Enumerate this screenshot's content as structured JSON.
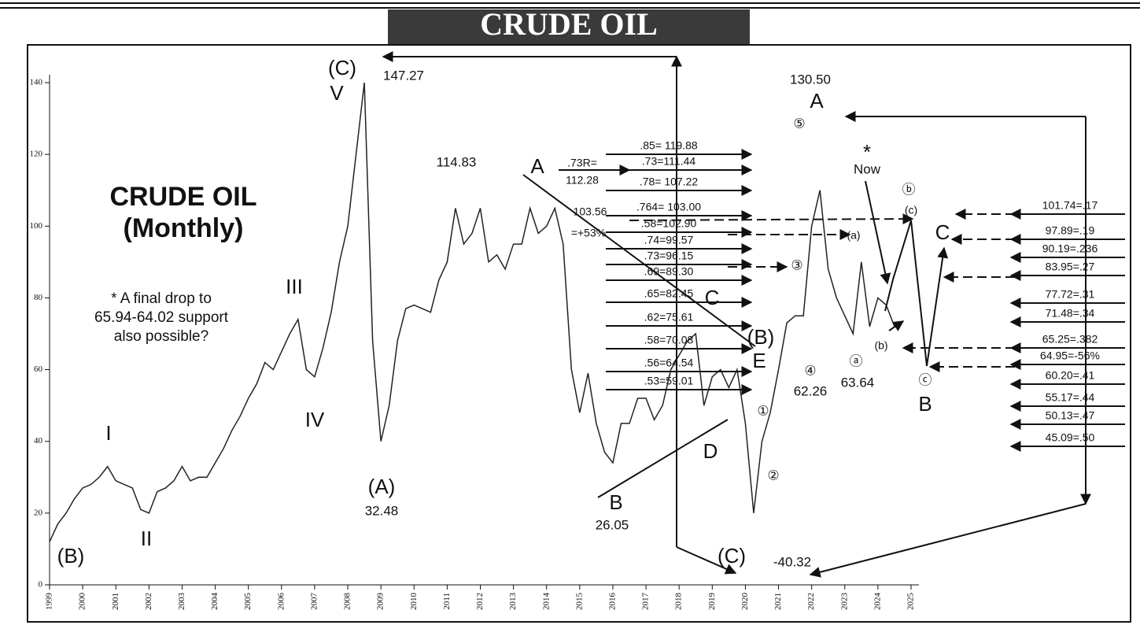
{
  "title": "CRUDE OIL",
  "chart_data": {
    "type": "line",
    "title": "CRUDE OIL",
    "subtitle": "(Monthly)",
    "xlim": [
      1999,
      2025.2
    ],
    "xticks": [
      1999,
      2000,
      2001,
      2002,
      2003,
      2004,
      2005,
      2006,
      2007,
      2008,
      2009,
      2010,
      2011,
      2012,
      2013,
      2014,
      2015,
      2016,
      2017,
      2018,
      2019,
      2020,
      2021,
      2022,
      2023,
      2024,
      2025
    ],
    "ylim": [
      0,
      140
    ],
    "yticks": [
      0,
      20,
      40,
      60,
      80,
      100,
      120,
      140
    ],
    "series": [
      {
        "name": "Crude oil",
        "color": "#222",
        "x": [
          1999,
          1999.25,
          1999.5,
          1999.75,
          2000,
          2000.25,
          2000.5,
          2000.75,
          2001,
          2001.25,
          2001.5,
          2001.75,
          2002,
          2002.25,
          2002.5,
          2002.75,
          2003,
          2003.25,
          2003.5,
          2003.75,
          2004,
          2004.25,
          2004.5,
          2004.75,
          2005,
          2005.25,
          2005.5,
          2005.75,
          2006,
          2006.25,
          2006.5,
          2006.75,
          2007,
          2007.25,
          2007.5,
          2007.75,
          2008,
          2008.25,
          2008.5,
          2008.75,
          2009,
          2009.25,
          2009.5,
          2009.75,
          2010,
          2010.25,
          2010.5,
          2010.75,
          2011,
          2011.25,
          2011.5,
          2011.75,
          2012,
          2012.25,
          2012.5,
          2012.75,
          2013,
          2013.25,
          2013.5,
          2013.75,
          2014,
          2014.25,
          2014.5,
          2014.75,
          2015,
          2015.25,
          2015.5,
          2015.75,
          2016,
          2016.25,
          2016.5,
          2016.75,
          2017,
          2017.25,
          2017.5,
          2017.75,
          2018,
          2018.25,
          2018.5,
          2018.75,
          2019,
          2019.25,
          2019.5,
          2019.75,
          2020,
          2020.25,
          2020.5,
          2020.75,
          2021,
          2021.25,
          2021.5,
          2021.75,
          2022,
          2022.25,
          2022.5,
          2022.75,
          2023,
          2023.25,
          2023.5,
          2023.75,
          2024,
          2024.25,
          2024.5
        ],
        "values": [
          12,
          17,
          20,
          24,
          27,
          28,
          30,
          33,
          29,
          28,
          27,
          21,
          20,
          26,
          27,
          29,
          33,
          29,
          30,
          30,
          34,
          38,
          43,
          47,
          52,
          56,
          62,
          60,
          65,
          70,
          74,
          60,
          58,
          66,
          76,
          90,
          100,
          120,
          140,
          68,
          40,
          50,
          68,
          77,
          78,
          77,
          76,
          85,
          90,
          105,
          95,
          98,
          105,
          90,
          92,
          88,
          95,
          95,
          105,
          98,
          100,
          105,
          95,
          60,
          48,
          59,
          45,
          37,
          34,
          45,
          45,
          52,
          52,
          46,
          50,
          60,
          64,
          68,
          70,
          50,
          58,
          60,
          55,
          60,
          45,
          20,
          40,
          48,
          60,
          73,
          75,
          75,
          100,
          110,
          88,
          80,
          75,
          70,
          90,
          72,
          80,
          78,
          72
        ]
      }
    ],
    "annotations": [
      "(C)",
      "V",
      "147.27",
      "114.83",
      "A",
      ".73R=",
      "112.28",
      "103.56",
      "=+53%",
      "III",
      "IV",
      "I",
      "II",
      "(B)",
      "(A)",
      "32.48",
      "B",
      "26.05",
      "D",
      "C",
      "(B)",
      "E",
      "(C)",
      "-40.32",
      "①",
      "②",
      "④",
      "62.26",
      "③",
      "⑤",
      "130.50",
      "A",
      "*",
      "Now",
      "ⓐ",
      "63.64",
      "(a)",
      "(b)",
      "ⓑ",
      "(c)",
      "C",
      "ⓒ",
      "B"
    ],
    "note": [
      "* A final drop to",
      "65.94-64.02 support",
      "also possible?"
    ],
    "fib_left": [
      ".85= 119.88",
      ".73=111.44",
      ".78= 107.22",
      ".764= 103.00",
      ".58=102.90",
      ".74=99.57",
      ".73=96.15",
      ".69=89.30",
      ".65=82.45",
      ".62=75.61",
      ".58=70.08",
      ".56=64.54",
      ".53=59.01"
    ],
    "fib_right": [
      "101.74=.17",
      "97.89=.19",
      "90.19=.236",
      "83.95=.27",
      "77.72=.31",
      "71.48=.34",
      "65.25=.382",
      "64.95=-56%",
      "60.20=.41",
      "55.17=.44",
      "50.13=.47",
      "45.09=.50"
    ]
  }
}
